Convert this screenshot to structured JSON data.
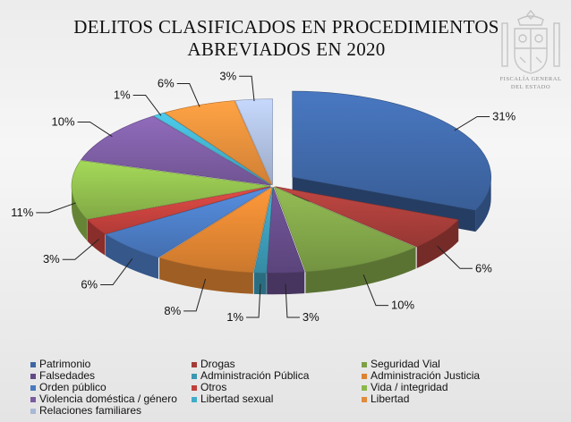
{
  "title_lines": [
    "DELITOS CLASIFICADOS EN PROCEDIMIENTOS",
    "ABREVIADOS EN 2020"
  ],
  "emblem_text": [
    "FISCALÍA GENERAL",
    "DEL ESTADO"
  ],
  "chart_data": {
    "type": "pie",
    "title": "DELITOS CLASIFICADOS EN PROCEDIMIENTOS ABREVIADOS EN 2020",
    "slices": [
      {
        "name": "Patrimonio",
        "value": 31,
        "label": "31%",
        "color": "#3e66a4"
      },
      {
        "name": "Drogas",
        "value": 6,
        "label": "6%",
        "color": "#a33c38"
      },
      {
        "name": "Seguridad Vial",
        "value": 10,
        "label": "10%",
        "color": "#7da047"
      },
      {
        "name": "Falsedades",
        "value": 3,
        "label": "3%",
        "color": "#634a86"
      },
      {
        "name": "Administración Pública",
        "value": 1,
        "label": "1%",
        "color": "#3c97b2"
      },
      {
        "name": "Administración Justicia",
        "value": 8,
        "label": "8%",
        "color": "#dd8231"
      },
      {
        "name": "Orden público",
        "value": 6,
        "label": "6%",
        "color": "#4a79bf"
      },
      {
        "name": "Otros",
        "value": 3,
        "label": "3%",
        "color": "#c0403c"
      },
      {
        "name": "Vida / integridad",
        "value": 11,
        "label": "11%",
        "color": "#8cb84b"
      },
      {
        "name": "Violencia doméstica / género",
        "value": 10,
        "label": "10%",
        "color": "#7a5b9f"
      },
      {
        "name": "Libertad sexual",
        "value": 1,
        "label": "1%",
        "color": "#41acc8"
      },
      {
        "name": "Libertad",
        "value": 6,
        "label": "6%",
        "color": "#e28a3a"
      },
      {
        "name": "Relaciones familiares",
        "value": 3,
        "label": "3%",
        "color": "#a8b8d6"
      }
    ],
    "legend_placement": "bottom"
  }
}
